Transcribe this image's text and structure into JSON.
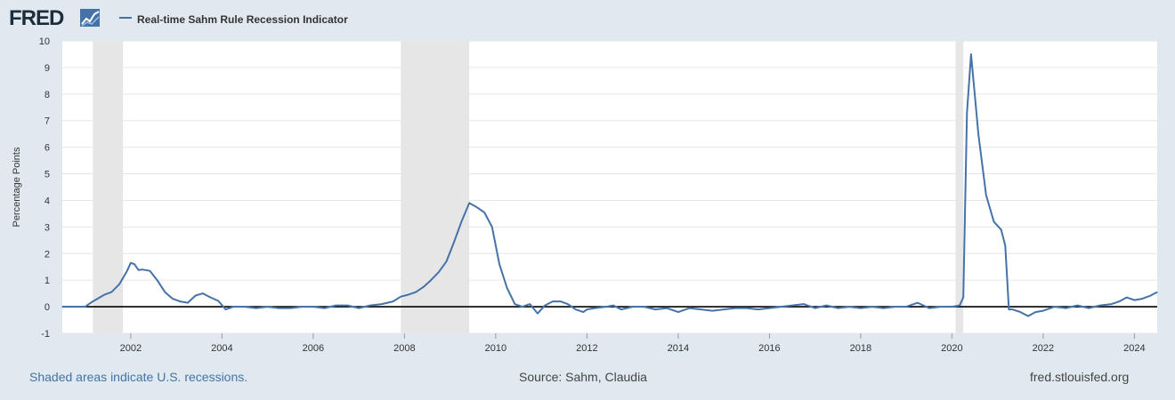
{
  "header": {
    "logo_text": "FRED"
  },
  "legend": {
    "series_label": "Real-time Sahm Rule Recession Indicator"
  },
  "footer": {
    "left": "Shaded areas indicate U.S. recessions.",
    "center": "Source: Sahm, Claudia",
    "right": "fred.stlouisfed.org"
  },
  "colors": {
    "series": "#4572a7",
    "recession_band": "#e6e6e6",
    "plot_background": "#ffffff",
    "page_background": "#e1e9f0",
    "zero_line": "#000000"
  },
  "chart_data": {
    "type": "line",
    "title": "",
    "ylabel": "Percentage Points",
    "xlabel": "",
    "xlim": [
      2000.5,
      2024.5
    ],
    "ylim": [
      -1,
      10
    ],
    "x_ticks": [
      2002,
      2004,
      2006,
      2008,
      2010,
      2012,
      2014,
      2016,
      2018,
      2020,
      2022,
      2024
    ],
    "x_tick_labels": [
      "2002",
      "2004",
      "2006",
      "2008",
      "2010",
      "2012",
      "2014",
      "2016",
      "2018",
      "2020",
      "2022",
      "2024"
    ],
    "y_ticks": [
      -1,
      0,
      1,
      2,
      3,
      4,
      5,
      6,
      7,
      8,
      9,
      10
    ],
    "y_tick_labels": [
      "-1",
      "0",
      "1",
      "2",
      "3",
      "4",
      "5",
      "6",
      "7",
      "8",
      "9",
      "10"
    ],
    "grid": "horizontal",
    "legend_position": "top-left",
    "reference_line": 0,
    "recessions": [
      [
        2001.17,
        2001.83
      ],
      [
        2007.92,
        2009.42
      ],
      [
        2020.08,
        2020.25
      ]
    ],
    "series": [
      {
        "name": "Real-time Sahm Rule Recession Indicator",
        "x": [
          2000.5,
          2000.75,
          2001.0,
          2001.17,
          2001.42,
          2001.58,
          2001.75,
          2001.92,
          2002.0,
          2002.08,
          2002.17,
          2002.25,
          2002.42,
          2002.58,
          2002.75,
          2002.92,
          2003.08,
          2003.25,
          2003.42,
          2003.58,
          2003.75,
          2003.92,
          2004.08,
          2004.25,
          2004.5,
          2004.75,
          2005.0,
          2005.25,
          2005.5,
          2005.75,
          2006.0,
          2006.25,
          2006.5,
          2006.75,
          2007.0,
          2007.25,
          2007.5,
          2007.75,
          2007.92,
          2008.08,
          2008.25,
          2008.42,
          2008.58,
          2008.75,
          2008.92,
          2009.08,
          2009.25,
          2009.42,
          2009.58,
          2009.75,
          2009.92,
          2010.08,
          2010.25,
          2010.42,
          2010.58,
          2010.75,
          2010.92,
          2011.08,
          2011.25,
          2011.42,
          2011.58,
          2011.75,
          2011.92,
          2012.0,
          2012.17,
          2012.42,
          2012.58,
          2012.75,
          2013.0,
          2013.25,
          2013.5,
          2013.75,
          2014.0,
          2014.25,
          2014.5,
          2014.75,
          2015.0,
          2015.25,
          2015.5,
          2015.75,
          2016.0,
          2016.25,
          2016.5,
          2016.75,
          2017.0,
          2017.25,
          2017.5,
          2017.75,
          2018.0,
          2018.25,
          2018.5,
          2018.75,
          2019.0,
          2019.25,
          2019.5,
          2019.75,
          2020.0,
          2020.17,
          2020.25,
          2020.33,
          2020.42,
          2020.58,
          2020.75,
          2020.92,
          2021.08,
          2021.17,
          2021.25,
          2021.33,
          2021.5,
          2021.67,
          2021.83,
          2022.0,
          2022.25,
          2022.5,
          2022.75,
          2023.0,
          2023.25,
          2023.5,
          2023.67,
          2023.83,
          2024.0,
          2024.17,
          2024.33,
          2024.5
        ],
        "values": [
          0.0,
          0.0,
          0.0,
          0.2,
          0.45,
          0.55,
          0.85,
          1.35,
          1.65,
          1.6,
          1.38,
          1.4,
          1.35,
          1.0,
          0.55,
          0.3,
          0.2,
          0.15,
          0.42,
          0.5,
          0.35,
          0.22,
          -0.1,
          0.0,
          0.0,
          -0.05,
          0.0,
          -0.05,
          -0.05,
          0.0,
          0.0,
          -0.05,
          0.05,
          0.05,
          -0.05,
          0.05,
          0.1,
          0.2,
          0.38,
          0.45,
          0.55,
          0.75,
          1.0,
          1.3,
          1.7,
          2.4,
          3.2,
          3.9,
          3.75,
          3.55,
          3.0,
          1.6,
          0.7,
          0.1,
          0.0,
          0.1,
          -0.25,
          0.05,
          0.2,
          0.2,
          0.1,
          -0.1,
          -0.2,
          -0.1,
          -0.05,
          0.0,
          0.05,
          -0.1,
          0.0,
          0.0,
          -0.1,
          -0.05,
          -0.2,
          -0.05,
          -0.1,
          -0.15,
          -0.1,
          -0.05,
          -0.05,
          -0.1,
          -0.05,
          0.0,
          0.05,
          0.1,
          -0.05,
          0.05,
          -0.05,
          0.0,
          -0.05,
          0.0,
          -0.05,
          0.0,
          0.0,
          0.15,
          -0.05,
          0.0,
          0.0,
          0.05,
          0.35,
          7.3,
          9.5,
          6.5,
          4.2,
          3.2,
          2.9,
          2.3,
          -0.1,
          -0.1,
          -0.2,
          -0.35,
          -0.2,
          -0.15,
          0.0,
          -0.05,
          0.05,
          -0.05,
          0.05,
          0.1,
          0.2,
          0.35,
          0.25,
          0.3,
          0.4,
          0.55
        ]
      }
    ]
  }
}
